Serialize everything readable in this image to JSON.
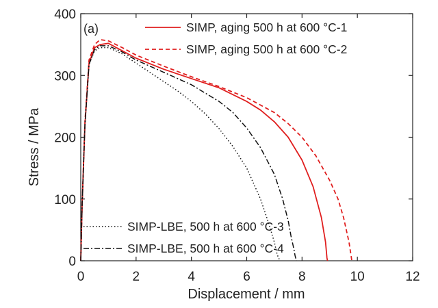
{
  "chart_data": {
    "type": "line",
    "panel_label": "(a)",
    "xlabel": "Displacement / mm",
    "ylabel": "Stress / MPa",
    "xlim": [
      0,
      12
    ],
    "ylim": [
      0,
      400
    ],
    "xticks": [
      0,
      2,
      4,
      6,
      8,
      10,
      12
    ],
    "yticks": [
      0,
      100,
      200,
      300,
      400
    ],
    "grid": false,
    "legend_upper": "top-right",
    "legend_lower": "bottom-left",
    "series": [
      {
        "name": "SIMP, aging 500 h at 600 °C-1",
        "color": "#e01f1f",
        "style": "solid",
        "legend": "upper",
        "x": [
          0,
          0.05,
          0.15,
          0.3,
          0.5,
          0.7,
          1.0,
          1.5,
          2.0,
          3.0,
          4.0,
          5.0,
          6.0,
          6.5,
          7.0,
          7.5,
          8.0,
          8.4,
          8.7,
          8.85,
          8.9,
          8.92
        ],
        "y": [
          0,
          90,
          220,
          320,
          345,
          350,
          352,
          340,
          328,
          310,
          295,
          280,
          258,
          244,
          225,
          200,
          163,
          120,
          70,
          30,
          5,
          0
        ]
      },
      {
        "name": "SIMP, aging 500 h at 600 °C-2",
        "color": "#e01f1f",
        "style": "dashed",
        "legend": "upper",
        "x": [
          0,
          0.05,
          0.15,
          0.3,
          0.5,
          0.7,
          1.0,
          1.5,
          2.0,
          3.0,
          4.0,
          5.0,
          6.0,
          7.0,
          7.5,
          8.0,
          8.5,
          9.0,
          9.3,
          9.5,
          9.7,
          9.8
        ],
        "y": [
          0,
          90,
          225,
          325,
          350,
          358,
          356,
          345,
          333,
          315,
          298,
          282,
          264,
          240,
          222,
          200,
          170,
          130,
          100,
          70,
          30,
          0
        ]
      },
      {
        "name": "SIMP-LBE, 500 h at 600 °C-3",
        "color": "#111111",
        "style": "dotted",
        "legend": "lower",
        "x": [
          0,
          0.05,
          0.15,
          0.3,
          0.5,
          0.7,
          1.0,
          1.5,
          2.0,
          2.5,
          3.0,
          3.5,
          4.0,
          4.5,
          5.0,
          5.5,
          6.0,
          6.5,
          6.8,
          7.0,
          7.1,
          7.2
        ],
        "y": [
          0,
          90,
          220,
          318,
          340,
          345,
          345,
          335,
          320,
          305,
          290,
          275,
          258,
          238,
          214,
          185,
          150,
          100,
          60,
          30,
          10,
          0
        ]
      },
      {
        "name": "SIMP-LBE, 500 h at 600 °C-4",
        "color": "#111111",
        "style": "dashdot",
        "legend": "lower",
        "x": [
          0,
          0.05,
          0.15,
          0.3,
          0.5,
          0.7,
          1.0,
          1.5,
          2.0,
          3.0,
          4.0,
          5.0,
          5.5,
          6.0,
          6.5,
          7.0,
          7.3,
          7.5,
          7.6,
          7.7,
          7.75,
          7.8
        ],
        "y": [
          0,
          90,
          220,
          318,
          342,
          348,
          348,
          338,
          325,
          305,
          285,
          258,
          240,
          215,
          183,
          140,
          100,
          65,
          40,
          20,
          8,
          0
        ]
      }
    ]
  }
}
